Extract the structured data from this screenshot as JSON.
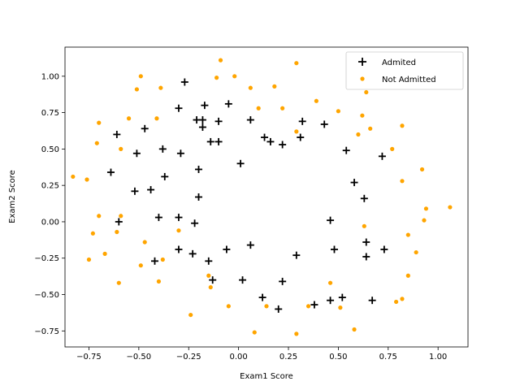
{
  "chart_data": {
    "type": "scatter",
    "title": "",
    "xlabel": "Exam1 Score",
    "ylabel": "Exam2 Score",
    "xlim": [
      -0.87,
      1.15
    ],
    "ylim": [
      -0.86,
      1.2
    ],
    "xticks": [
      -0.75,
      -0.5,
      -0.25,
      0.0,
      0.25,
      0.5,
      0.75,
      1.0
    ],
    "xtick_labels": [
      "−0.75",
      "−0.50",
      "−0.25",
      "0.00",
      "0.25",
      "0.50",
      "0.75",
      "1.00"
    ],
    "yticks": [
      -0.75,
      -0.5,
      -0.25,
      0.0,
      0.25,
      0.5,
      0.75,
      1.0
    ],
    "ytick_labels": [
      "−0.75",
      "−0.50",
      "−0.25",
      "0.00",
      "0.25",
      "0.50",
      "0.75",
      "1.00"
    ],
    "grid": false,
    "legend": "top-right",
    "series": [
      {
        "name": "Admited",
        "marker": "plus",
        "color": "#000000",
        "points": [
          [
            -0.27,
            0.96
          ],
          [
            -0.05,
            0.81
          ],
          [
            -0.17,
            0.8
          ],
          [
            -0.3,
            0.78
          ],
          [
            -0.21,
            0.7
          ],
          [
            -0.18,
            0.7
          ],
          [
            -0.1,
            0.69
          ],
          [
            0.06,
            0.7
          ],
          [
            -0.47,
            0.64
          ],
          [
            -0.18,
            0.65
          ],
          [
            -0.61,
            0.6
          ],
          [
            0.32,
            0.69
          ],
          [
            0.43,
            0.67
          ],
          [
            0.13,
            0.58
          ],
          [
            0.16,
            0.55
          ],
          [
            -0.14,
            0.55
          ],
          [
            -0.1,
            0.55
          ],
          [
            0.22,
            0.53
          ],
          [
            0.31,
            0.58
          ],
          [
            -0.38,
            0.5
          ],
          [
            -0.51,
            0.47
          ],
          [
            -0.29,
            0.47
          ],
          [
            0.54,
            0.49
          ],
          [
            0.72,
            0.45
          ],
          [
            -0.64,
            0.34
          ],
          [
            -0.2,
            0.36
          ],
          [
            -0.37,
            0.31
          ],
          [
            0.01,
            0.4
          ],
          [
            0.58,
            0.27
          ],
          [
            -0.52,
            0.21
          ],
          [
            -0.44,
            0.22
          ],
          [
            0.63,
            0.16
          ],
          [
            -0.2,
            0.17
          ],
          [
            -0.6,
            0.0
          ],
          [
            -0.4,
            0.03
          ],
          [
            -0.3,
            0.03
          ],
          [
            -0.22,
            -0.01
          ],
          [
            0.46,
            0.01
          ],
          [
            0.64,
            -0.14
          ],
          [
            -0.3,
            -0.19
          ],
          [
            -0.23,
            -0.22
          ],
          [
            -0.06,
            -0.19
          ],
          [
            0.06,
            -0.16
          ],
          [
            0.48,
            -0.19
          ],
          [
            0.73,
            -0.19
          ],
          [
            -0.42,
            -0.27
          ],
          [
            -0.15,
            -0.27
          ],
          [
            0.29,
            -0.23
          ],
          [
            0.64,
            -0.24
          ],
          [
            -0.13,
            -0.4
          ],
          [
            0.02,
            -0.4
          ],
          [
            0.22,
            -0.41
          ],
          [
            0.12,
            -0.52
          ],
          [
            0.2,
            -0.6
          ],
          [
            0.38,
            -0.57
          ],
          [
            0.46,
            -0.54
          ],
          [
            0.52,
            -0.52
          ],
          [
            0.67,
            -0.54
          ]
        ]
      },
      {
        "name": "Not Admitted",
        "marker": "dot",
        "color": "#ffa500",
        "points": [
          [
            -0.09,
            1.11
          ],
          [
            0.29,
            1.09
          ],
          [
            -0.49,
            1.0
          ],
          [
            -0.11,
            0.99
          ],
          [
            -0.02,
            1.0
          ],
          [
            -0.51,
            0.91
          ],
          [
            -0.39,
            0.92
          ],
          [
            0.06,
            0.92
          ],
          [
            0.18,
            0.93
          ],
          [
            0.64,
            0.89
          ],
          [
            0.39,
            0.83
          ],
          [
            0.1,
            0.78
          ],
          [
            0.22,
            0.78
          ],
          [
            0.5,
            0.76
          ],
          [
            0.62,
            0.73
          ],
          [
            -0.55,
            0.71
          ],
          [
            -0.41,
            0.71
          ],
          [
            -0.7,
            0.68
          ],
          [
            0.82,
            0.66
          ],
          [
            0.66,
            0.64
          ],
          [
            0.29,
            0.62
          ],
          [
            0.6,
            0.6
          ],
          [
            -0.71,
            0.54
          ],
          [
            -0.59,
            0.5
          ],
          [
            0.77,
            0.5
          ],
          [
            0.92,
            0.36
          ],
          [
            -0.83,
            0.31
          ],
          [
            -0.76,
            0.29
          ],
          [
            0.82,
            0.28
          ],
          [
            0.94,
            0.09
          ],
          [
            1.06,
            0.1
          ],
          [
            -0.7,
            0.04
          ],
          [
            -0.59,
            0.04
          ],
          [
            0.93,
            0.01
          ],
          [
            0.63,
            -0.03
          ],
          [
            -0.61,
            -0.07
          ],
          [
            -0.73,
            -0.08
          ],
          [
            -0.3,
            -0.06
          ],
          [
            0.85,
            -0.09
          ],
          [
            -0.47,
            -0.14
          ],
          [
            0.89,
            -0.21
          ],
          [
            -0.67,
            -0.22
          ],
          [
            -0.75,
            -0.26
          ],
          [
            -0.38,
            -0.26
          ],
          [
            -0.49,
            -0.3
          ],
          [
            0.85,
            -0.37
          ],
          [
            -0.15,
            -0.37
          ],
          [
            -0.6,
            -0.42
          ],
          [
            -0.4,
            -0.41
          ],
          [
            0.46,
            -0.42
          ],
          [
            -0.14,
            -0.45
          ],
          [
            0.82,
            -0.53
          ],
          [
            0.79,
            -0.55
          ],
          [
            -0.05,
            -0.58
          ],
          [
            0.14,
            -0.58
          ],
          [
            0.35,
            -0.58
          ],
          [
            0.51,
            -0.59
          ],
          [
            -0.24,
            -0.64
          ],
          [
            0.58,
            -0.74
          ],
          [
            0.08,
            -0.76
          ],
          [
            0.29,
            -0.77
          ]
        ]
      }
    ]
  }
}
